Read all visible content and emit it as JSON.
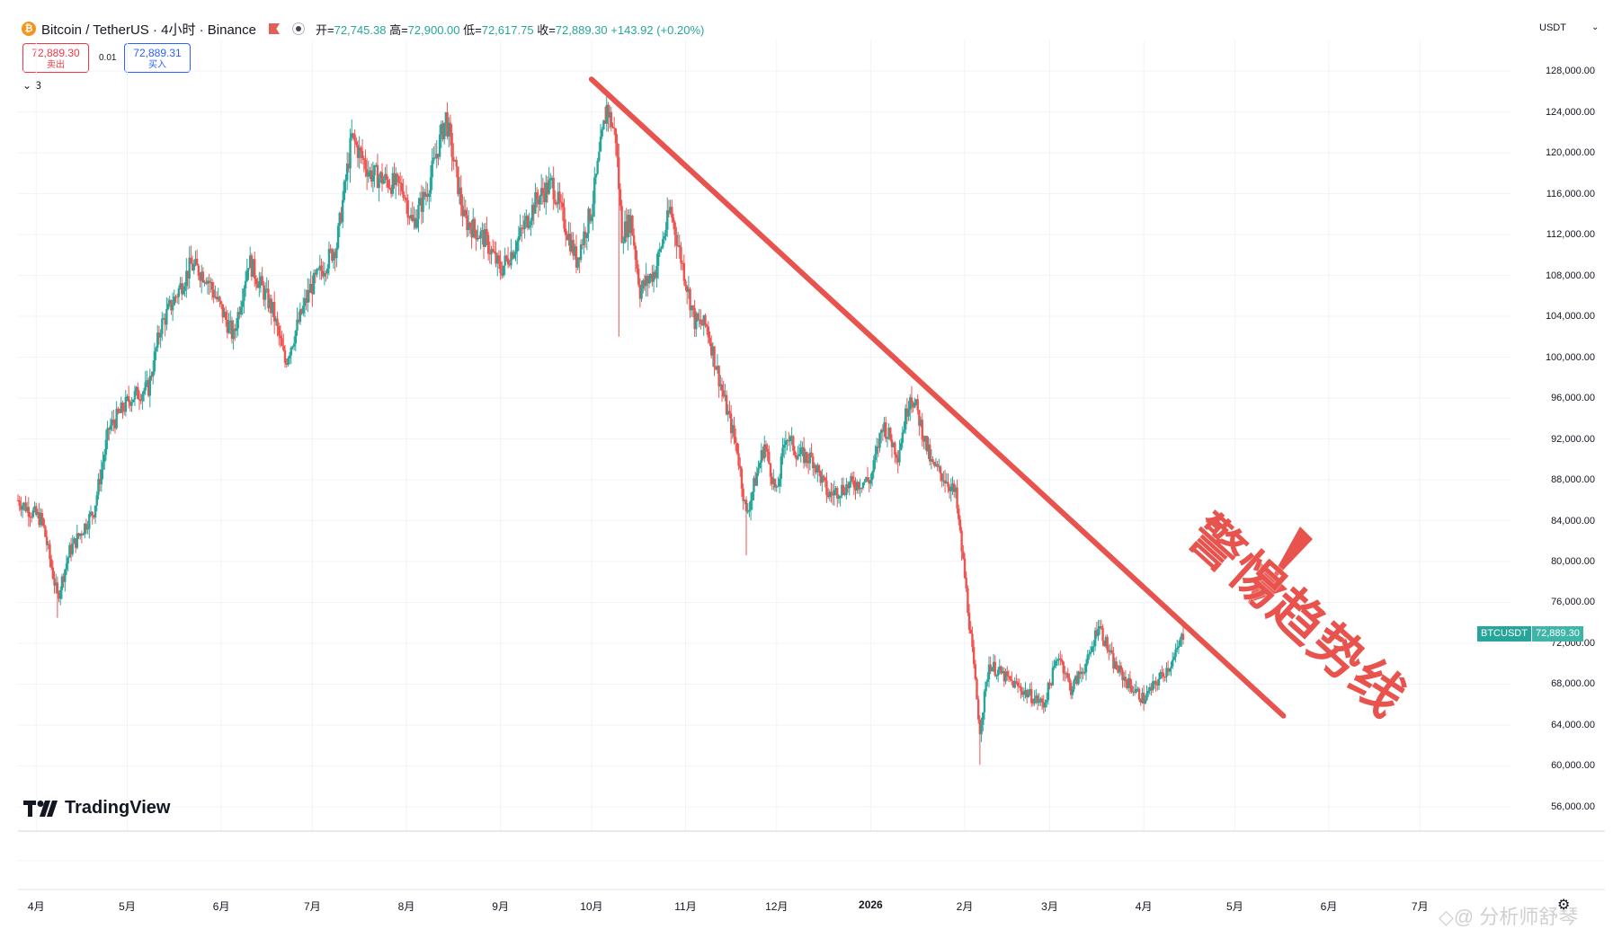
{
  "header": {
    "coin_glyph": "₿",
    "symbol_title": "Bitcoin / TetherUS · 4小时 · Binance",
    "ohlc": {
      "open_label": "开=",
      "open": "72,745.38",
      "high_label": "高=",
      "high": "72,900.00",
      "low_label": "低=",
      "low": "72,617.75",
      "close_label": "收=",
      "close": "72,889.30",
      "change": "+143.92 (+0.20%)"
    }
  },
  "trade": {
    "sell_price": "72,889.30",
    "sell_label": "卖出",
    "spread": "0.01",
    "buy_price": "72,889.31",
    "buy_label": "买入"
  },
  "indicator_toggle": {
    "caret": "⌄",
    "count": "3"
  },
  "currency": {
    "label": "USDT",
    "caret": "⌄"
  },
  "price_label": {
    "symbol": "BTCUSDT",
    "value": "72,889.30"
  },
  "logo": {
    "text": "TradingView"
  },
  "annotation": {
    "text": "警惕趋势线"
  },
  "watermark": {
    "text": "◇@ 分析师舒琴"
  },
  "icons": {
    "settings": "⚙"
  },
  "colors": {
    "up": "#26a69a",
    "down": "#ef5350",
    "trendline": "#e8534e",
    "grid": "#f0f3fa"
  },
  "chart_data": {
    "type": "candlestick",
    "symbol": "BTCUSDT",
    "timeframe": "4小时",
    "y_ticks": [
      "128,000.00",
      "124,000.00",
      "120,000.00",
      "116,000.00",
      "112,000.00",
      "108,000.00",
      "104,000.00",
      "100,000.00",
      "96,000.00",
      "92,000.00",
      "88,000.00",
      "84,000.00",
      "80,000.00",
      "76,000.00",
      "72,000.00",
      "68,000.00",
      "64,000.00",
      "60,000.00",
      "56,000.00"
    ],
    "y_tick_values": [
      128000,
      124000,
      120000,
      116000,
      112000,
      108000,
      104000,
      100000,
      96000,
      92000,
      88000,
      84000,
      80000,
      76000,
      72000,
      68000,
      64000,
      60000,
      56000
    ],
    "x_ticks": [
      {
        "label": "4月",
        "date": "2025-04-01"
      },
      {
        "label": "5月",
        "date": "2025-05-01"
      },
      {
        "label": "6月",
        "date": "2025-06-01"
      },
      {
        "label": "7月",
        "date": "2025-07-01"
      },
      {
        "label": "8月",
        "date": "2025-08-01"
      },
      {
        "label": "9月",
        "date": "2025-09-01"
      },
      {
        "label": "10月",
        "date": "2025-10-01"
      },
      {
        "label": "11月",
        "date": "2025-11-01"
      },
      {
        "label": "12月",
        "date": "2025-12-01"
      },
      {
        "label": "2026",
        "date": "2026-01-01",
        "bold": true
      },
      {
        "label": "2月",
        "date": "2026-02-01"
      },
      {
        "label": "3月",
        "date": "2026-03-01"
      },
      {
        "label": "4月",
        "date": "2026-04-01"
      },
      {
        "label": "5月",
        "date": "2026-05-01"
      },
      {
        "label": "6月",
        "date": "2026-06-01"
      },
      {
        "label": "7月",
        "date": "2026-07-01"
      }
    ],
    "ylim": [
      54500,
      131000
    ],
    "xlim": [
      "2025-03-26",
      "2026-07-19"
    ],
    "price_path": [
      [
        "2025-03-26",
        86000
      ],
      [
        "2025-04-03",
        84000
      ],
      [
        "2025-04-08",
        76500
      ],
      [
        "2025-04-12",
        81000
      ],
      [
        "2025-04-20",
        85000
      ],
      [
        "2025-04-25",
        93000
      ],
      [
        "2025-05-02",
        96000
      ],
      [
        "2025-05-08",
        97000
      ],
      [
        "2025-05-12",
        103000
      ],
      [
        "2025-05-22",
        109000
      ],
      [
        "2025-05-27",
        108000
      ],
      [
        "2025-06-05",
        102000
      ],
      [
        "2025-06-10",
        109500
      ],
      [
        "2025-06-18",
        104500
      ],
      [
        "2025-06-22",
        99500
      ],
      [
        "2025-06-30",
        106500
      ],
      [
        "2025-07-09",
        111000
      ],
      [
        "2025-07-14",
        121500
      ],
      [
        "2025-07-20",
        118000
      ],
      [
        "2025-07-31",
        116500
      ],
      [
        "2025-08-03",
        113000
      ],
      [
        "2025-08-08",
        116500
      ],
      [
        "2025-08-14",
        123500
      ],
      [
        "2025-08-20",
        113500
      ],
      [
        "2025-08-27",
        111500
      ],
      [
        "2025-09-01",
        108500
      ],
      [
        "2025-09-06",
        111000
      ],
      [
        "2025-09-13",
        115500
      ],
      [
        "2025-09-18",
        117000
      ],
      [
        "2025-09-26",
        109500
      ],
      [
        "2025-10-01",
        114500
      ],
      [
        "2025-10-06",
        124500
      ],
      [
        "2025-10-09",
        121500
      ],
      [
        "2025-10-11",
        112000
      ],
      [
        "2025-10-14",
        113500
      ],
      [
        "2025-10-17",
        106500
      ],
      [
        "2025-10-22",
        108500
      ],
      [
        "2025-10-27",
        114500
      ],
      [
        "2025-11-04",
        103500
      ],
      [
        "2025-11-08",
        103000
      ],
      [
        "2025-11-14",
        95500
      ],
      [
        "2025-11-18",
        91000
      ],
      [
        "2025-11-21",
        84500
      ],
      [
        "2025-11-27",
        91500
      ],
      [
        "2025-12-01",
        86500
      ],
      [
        "2025-12-04",
        92500
      ],
      [
        "2025-12-08",
        90500
      ],
      [
        "2025-12-13",
        90000
      ],
      [
        "2025-12-18",
        86500
      ],
      [
        "2025-12-25",
        87500
      ],
      [
        "2026-01-01",
        88000
      ],
      [
        "2026-01-05",
        93500
      ],
      [
        "2026-01-10",
        90500
      ],
      [
        "2026-01-14",
        96500
      ],
      [
        "2026-01-16",
        95000
      ],
      [
        "2026-01-21",
        89500
      ],
      [
        "2026-01-26",
        88000
      ],
      [
        "2026-01-29",
        86500
      ],
      [
        "2026-02-01",
        78500
      ],
      [
        "2026-02-06",
        63500
      ],
      [
        "2026-02-09",
        70000
      ],
      [
        "2026-02-15",
        68500
      ],
      [
        "2026-02-22",
        67000
      ],
      [
        "2026-02-27",
        66000
      ],
      [
        "2026-03-04",
        71000
      ],
      [
        "2026-03-08",
        67500
      ],
      [
        "2026-03-14",
        70500
      ],
      [
        "2026-03-17",
        74000
      ],
      [
        "2026-03-22",
        70000
      ],
      [
        "2026-03-27",
        68000
      ],
      [
        "2026-04-01",
        66500
      ],
      [
        "2026-04-06",
        68500
      ],
      [
        "2026-04-11",
        70500
      ],
      [
        "2026-04-14",
        72889
      ]
    ],
    "wicks": [
      {
        "date": "2025-04-08",
        "low": 74500
      },
      {
        "date": "2025-10-06",
        "high": 126100
      },
      {
        "date": "2025-10-10",
        "low": 102000
      },
      {
        "date": "2025-11-21",
        "low": 80600
      },
      {
        "date": "2026-02-06",
        "low": 60100
      }
    ],
    "trendline": {
      "start": [
        "2025-10-01",
        127200
      ],
      "end": [
        "2026-05-17",
        64900
      ]
    },
    "last_price": 72889.3
  }
}
